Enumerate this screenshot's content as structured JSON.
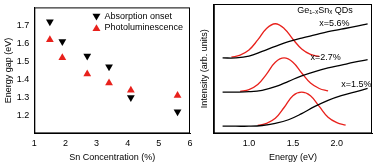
{
  "chart_data": [
    {
      "type": "scatter",
      "x_label": "Sn Concentration (%)",
      "y_label": "Energy gap (eV)",
      "xlim": [
        1,
        6
      ],
      "xticks": [
        1,
        2,
        3,
        4,
        5,
        6
      ],
      "ylim": [
        1.1,
        1.8
      ],
      "yticks": [
        1.2,
        1.3,
        1.4,
        1.5,
        1.6,
        1.7
      ],
      "grid": false,
      "legend": "upper right",
      "series": [
        {
          "name": "Absorption onset",
          "color": "#000000",
          "marker": "triangle_down",
          "x": [
            1.5,
            1.9,
            2.7,
            3.4,
            4.1,
            5.6
          ],
          "values": [
            1.72,
            1.61,
            1.53,
            1.47,
            1.3,
            1.22
          ]
        },
        {
          "name": "Photoluminescence",
          "color": "#e8211c",
          "marker": "triangle_up",
          "x": [
            1.5,
            1.9,
            2.7,
            3.4,
            4.1,
            5.6
          ],
          "values": [
            1.62,
            1.52,
            1.43,
            1.38,
            1.34,
            1.31
          ]
        }
      ]
    },
    {
      "type": "line",
      "x_label": "Energy (eV)",
      "y_label": "Intensity (arb. units)",
      "xlim": [
        0.6,
        2.4
      ],
      "xticks": [
        {
          "value": 1,
          "label": "1.0"
        },
        {
          "value": 1.5,
          "label": "1.5"
        },
        {
          "value": 2,
          "label": "2.0"
        }
      ],
      "ylim": [
        0,
        3.6
      ],
      "grid": false,
      "tick_labels": "x",
      "annotations": [
        {
          "text": "Ge₁₋ₓSnₓ QDs",
          "x": 1.55,
          "y": 3.42
        },
        {
          "text": "x=5.6%",
          "x": 1.8,
          "y": 3.05
        },
        {
          "text": "x=2.7%",
          "x": 1.7,
          "y": 2.1
        },
        {
          "text": "x=1.5%",
          "x": 2.05,
          "y": 1.35
        }
      ],
      "series": [
        {
          "color": "#000000",
          "x": [
            0.7,
            0.85,
            1.0,
            1.15,
            1.3,
            1.45,
            1.6,
            1.75,
            1.9,
            2.05,
            2.2,
            2.35
          ],
          "values": [
            2.1,
            2.1,
            2.15,
            2.28,
            2.42,
            2.55,
            2.65,
            2.74,
            2.83,
            2.9,
            2.97,
            3.05
          ]
        },
        {
          "color": "#000000",
          "x": [
            0.7,
            0.85,
            1.0,
            1.15,
            1.3,
            1.45,
            1.6,
            1.75,
            1.9,
            2.05,
            2.2,
            2.35
          ],
          "values": [
            1.15,
            1.15,
            1.16,
            1.2,
            1.3,
            1.45,
            1.6,
            1.72,
            1.82,
            1.9,
            1.98,
            2.05
          ]
        },
        {
          "color": "#000000",
          "x": [
            0.7,
            0.85,
            1.0,
            1.15,
            1.3,
            1.45,
            1.6,
            1.75,
            1.9,
            2.05,
            2.2,
            2.35
          ],
          "values": [
            0.2,
            0.2,
            0.2,
            0.22,
            0.28,
            0.38,
            0.55,
            0.75,
            0.92,
            1.05,
            1.15,
            1.25
          ]
        },
        {
          "color": "#e8211c",
          "x": [
            0.8,
            0.9,
            1.0,
            1.1,
            1.2,
            1.3,
            1.4,
            1.5,
            1.6,
            1.7,
            1.8
          ],
          "values": [
            2.12,
            2.18,
            2.32,
            2.6,
            2.92,
            3.05,
            2.92,
            2.62,
            2.35,
            2.2,
            2.14
          ]
        },
        {
          "color": "#e8211c",
          "x": [
            0.9,
            1.0,
            1.1,
            1.2,
            1.3,
            1.4,
            1.5,
            1.6,
            1.7,
            1.8,
            1.9
          ],
          "values": [
            1.17,
            1.22,
            1.36,
            1.65,
            1.98,
            2.1,
            1.98,
            1.68,
            1.4,
            1.25,
            1.18
          ]
        },
        {
          "color": "#e8211c",
          "x": [
            1.1,
            1.2,
            1.3,
            1.4,
            1.5,
            1.6,
            1.7,
            1.8,
            1.9,
            2.0,
            2.1
          ],
          "values": [
            0.22,
            0.28,
            0.42,
            0.72,
            1.05,
            1.15,
            1.05,
            0.75,
            0.45,
            0.3,
            0.23
          ]
        }
      ]
    }
  ]
}
